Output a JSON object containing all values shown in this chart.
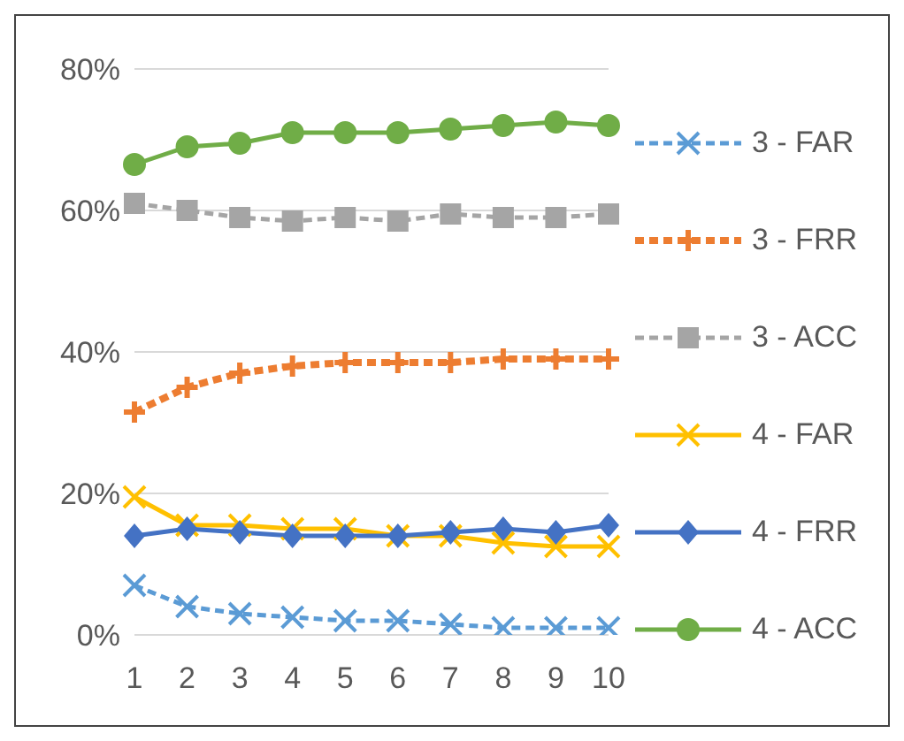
{
  "chart_data": {
    "type": "line",
    "categories": [
      "1",
      "2",
      "3",
      "4",
      "5",
      "6",
      "7",
      "8",
      "9",
      "10"
    ],
    "series": [
      {
        "name": "3 - FAR",
        "color": "#5b9bd5",
        "marker": "cross",
        "line_style": "dashed",
        "values": [
          7,
          4,
          3,
          2.5,
          2,
          2,
          1.5,
          1,
          1,
          1
        ]
      },
      {
        "name": "3 - FRR",
        "color": "#ed7d31",
        "marker": "plus",
        "line_style": "dashed",
        "values": [
          31.5,
          35,
          37,
          38,
          38.5,
          38.5,
          38.5,
          39,
          39,
          39
        ]
      },
      {
        "name": "3 - ACC",
        "color": "#a5a5a5",
        "marker": "square",
        "line_style": "dashed",
        "values": [
          61,
          60,
          59,
          58.5,
          59,
          58.5,
          59.5,
          59,
          59,
          59.5
        ]
      },
      {
        "name": "4 - FAR",
        "color": "#ffc000",
        "marker": "cross",
        "line_style": "solid",
        "values": [
          19.5,
          15.5,
          15.5,
          15,
          15,
          14,
          14,
          13,
          12.5,
          12.5
        ]
      },
      {
        "name": "4 - FRR",
        "color": "#4472c4",
        "marker": "diamond",
        "line_style": "solid",
        "values": [
          14,
          15,
          14.5,
          14,
          14,
          14,
          14.5,
          15,
          14.5,
          15.5
        ]
      },
      {
        "name": "4 - ACC",
        "color": "#70ad47",
        "marker": "circle",
        "line_style": "solid",
        "values": [
          66.5,
          69,
          69.5,
          71,
          71,
          71,
          71.5,
          72,
          72.5,
          72
        ]
      }
    ],
    "ylim": [
      0,
      80
    ],
    "yticks": [
      {
        "value": 0,
        "label": "0%"
      },
      {
        "value": 20,
        "label": "20%"
      },
      {
        "value": 40,
        "label": "40%"
      },
      {
        "value": 60,
        "label": "60%"
      },
      {
        "value": 80,
        "label": "80%"
      }
    ],
    "grid": "y",
    "legend": "right"
  }
}
